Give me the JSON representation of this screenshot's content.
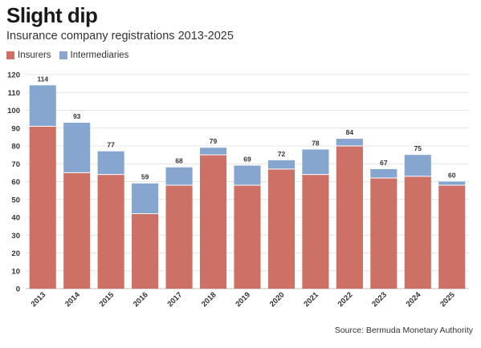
{
  "header": {
    "title": "Slight dip",
    "subtitle": "Insurance company registrations 2013-2025"
  },
  "source": "Source: Bermuda Monetary Authority",
  "colors": {
    "insurers": "#cd7166",
    "intermediaries": "#86a6d0"
  },
  "chart_data": {
    "type": "bar",
    "stacked": true,
    "title": "Slight dip",
    "subtitle": "Insurance company registrations 2013-2025",
    "xlabel": "",
    "ylabel": "",
    "ylim": [
      0,
      120
    ],
    "yticks": [
      0,
      10,
      20,
      30,
      40,
      50,
      60,
      70,
      80,
      90,
      100,
      110,
      120
    ],
    "grid": true,
    "legend_position": "top-left",
    "categories": [
      "2013",
      "2014",
      "2015",
      "2016",
      "2017",
      "2018",
      "2019",
      "2020",
      "2021",
      "2022",
      "2023",
      "2024",
      "2025"
    ],
    "series": [
      {
        "name": "Insurers",
        "values": [
          91,
          65,
          64,
          42,
          58,
          75,
          58,
          67,
          64,
          80,
          62,
          63,
          58
        ]
      },
      {
        "name": "Intermediaries",
        "values": [
          23,
          28,
          13,
          17,
          10,
          4,
          11,
          5,
          14,
          4,
          5,
          12,
          2
        ]
      }
    ],
    "totals": [
      114,
      93,
      77,
      59,
      68,
      79,
      69,
      72,
      78,
      84,
      67,
      75,
      60
    ]
  }
}
